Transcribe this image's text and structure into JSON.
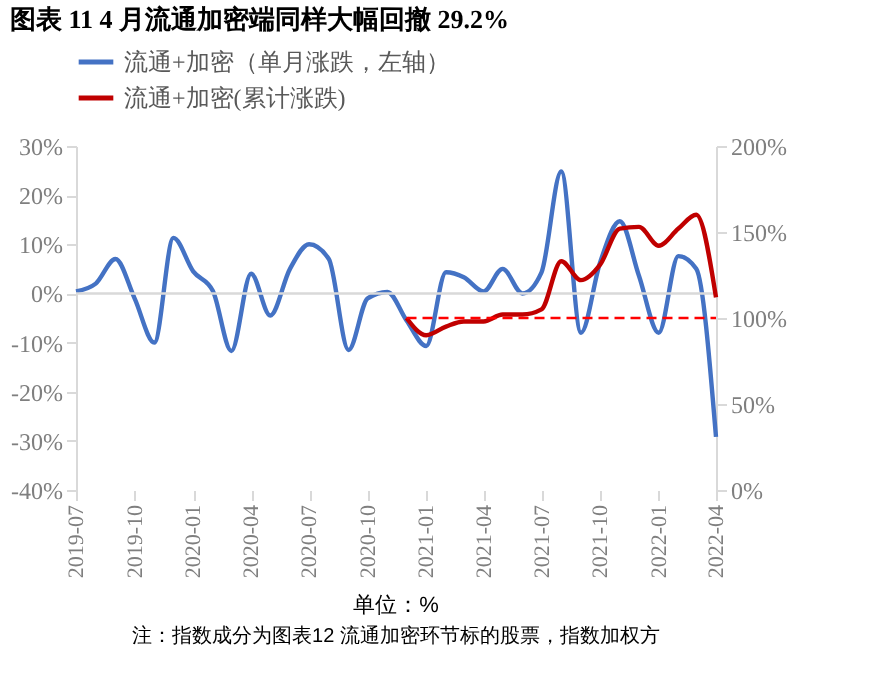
{
  "chart_data": {
    "type": "line",
    "title": "图表 11 4 月流通加密端同样大幅回撤 29.2%",
    "x": [
      "2019-07",
      "2019-08",
      "2019-09",
      "2019-10",
      "2019-11",
      "2019-12",
      "2020-01",
      "2020-02",
      "2020-03",
      "2020-04",
      "2020-05",
      "2020-06",
      "2020-07",
      "2020-08",
      "2020-09",
      "2020-10",
      "2020-11",
      "2020-12",
      "2021-01",
      "2021-02",
      "2021-03",
      "2021-04",
      "2021-05",
      "2021-06",
      "2021-07",
      "2021-08",
      "2021-09",
      "2021-10",
      "2021-11",
      "2021-12",
      "2022-01",
      "2022-02",
      "2022-03",
      "2022-04"
    ],
    "series": [
      {
        "name": "流通+加密（单月涨跌，左轴）",
        "color": "#4472c4",
        "values": [
          0.4,
          2,
          7,
          -1,
          -10,
          11.3,
          4.5,
          0.5,
          -11.7,
          4,
          -4.5,
          5,
          10,
          7,
          -11.5,
          -1,
          0.3,
          -5.5,
          -10.7,
          4.3,
          3.3,
          0.4,
          5,
          0,
          4.3,
          24.8,
          -8,
          6.3,
          14.7,
          3.6,
          -8,
          7.6,
          5,
          -29.2
        ]
      },
      {
        "name": "流通+加密(累计涨跌)",
        "color": "#c00000",
        "axis": "y2",
        "x": [
          "2020-12",
          "2021-01",
          "2021-02",
          "2021-03",
          "2021-04",
          "2021-05",
          "2021-06",
          "2021-07",
          "2021-08",
          "2021-09",
          "2021-10",
          "2021-11",
          "2021-12",
          "2022-01",
          "2022-02",
          "2022-03",
          "2022-04"
        ],
        "values": [
          100,
          90,
          95,
          98,
          98,
          102,
          102,
          105,
          133,
          122,
          131,
          152,
          153,
          142,
          152,
          160,
          112
        ]
      }
    ],
    "xlim": [
      "2019-07",
      "2022-04"
    ],
    "xticks": [
      "2019-07",
      "2019-10",
      "2020-01",
      "2020-04",
      "2020-07",
      "2020-10",
      "2021-01",
      "2021-04",
      "2021-07",
      "2021-10",
      "2022-01",
      "2022-04"
    ],
    "ylim": [
      -40,
      30
    ],
    "yticks": [
      {
        "value": -40,
        "label": "-40%"
      },
      {
        "value": -30,
        "label": "-30%"
      },
      {
        "value": -20,
        "label": "-20%"
      },
      {
        "value": -10,
        "label": "-10%"
      },
      {
        "value": 0,
        "label": "0%"
      },
      {
        "value": 10,
        "label": "10%"
      },
      {
        "value": 20,
        "label": "20%"
      },
      {
        "value": 30,
        "label": "30%"
      }
    ],
    "y2lim": [
      0,
      200
    ],
    "y2ticks": [
      {
        "value": 0,
        "label": "0%"
      },
      {
        "value": 50,
        "label": "50%"
      },
      {
        "value": 100,
        "label": "100%"
      },
      {
        "value": 150,
        "label": "150%"
      },
      {
        "value": 200,
        "label": "200%"
      }
    ],
    "ref_lines": [
      {
        "axis": "y2",
        "value": 100,
        "color": "#ff0000",
        "line_style": "dashed"
      },
      {
        "axis": "y",
        "value": 0,
        "color": "#d9d9d9"
      }
    ],
    "legend": "top",
    "grid": false,
    "marker": "none",
    "line_style": "solid",
    "annotations": [
      "单位：%",
      "注：指数成分为图表12 流通加密环节标的股票，指数加权方"
    ]
  }
}
